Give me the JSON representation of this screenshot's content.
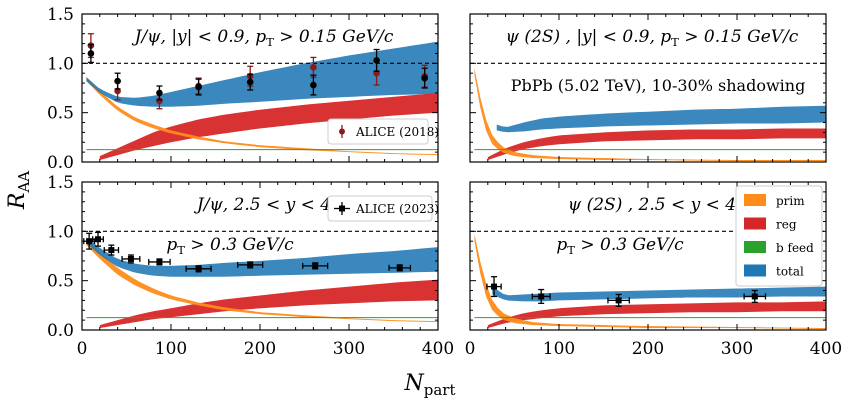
{
  "figure": {
    "ylabel": "R_AA",
    "ylabel_main": "R",
    "ylabel_sub": "AA",
    "xlabel": "N_part",
    "xlabel_main": "N",
    "xlabel_sub": "part"
  },
  "colors": {
    "prim": "#ff8c1a",
    "reg": "#d62728",
    "bfeed": "#2ca02c",
    "total": "#1f77b4",
    "data2018": "#8b1a1a",
    "data2023": "#000000"
  },
  "legend_total": {
    "prim": "prim",
    "reg": "reg",
    "bfeed": "b feed",
    "total": "total"
  },
  "chart_data": [
    {
      "id": "tl",
      "type": "area",
      "title_parts": [
        "J/ψ,  |y| < 0.9,  p",
        "T",
        " > 0.15 GeV/c"
      ],
      "xlim": [
        0,
        400
      ],
      "ylim": [
        0,
        1.5
      ],
      "xticks": [
        "0",
        "100",
        "200",
        "300",
        "400"
      ],
      "yticks": [
        "0.0",
        "0.5",
        "1.0",
        "1.5"
      ],
      "reference_line": 1.0,
      "bands": {
        "prim": {
          "x": [
            5,
            20,
            40,
            60,
            80,
            100,
            130,
            160,
            200,
            250,
            300,
            350,
            400
          ],
          "lo": [
            0.82,
            0.68,
            0.52,
            0.41,
            0.34,
            0.29,
            0.23,
            0.19,
            0.15,
            0.12,
            0.1,
            0.08,
            0.07
          ],
          "hi": [
            0.86,
            0.72,
            0.56,
            0.45,
            0.38,
            0.32,
            0.26,
            0.21,
            0.17,
            0.14,
            0.11,
            0.09,
            0.08
          ]
        },
        "reg": {
          "x": [
            20,
            40,
            60,
            80,
            100,
            130,
            160,
            200,
            250,
            300,
            350,
            400
          ],
          "lo": [
            0.02,
            0.07,
            0.12,
            0.16,
            0.2,
            0.25,
            0.29,
            0.34,
            0.39,
            0.43,
            0.47,
            0.5
          ],
          "hi": [
            0.06,
            0.14,
            0.22,
            0.3,
            0.36,
            0.43,
            0.48,
            0.53,
            0.58,
            0.62,
            0.66,
            0.7
          ]
        },
        "total": {
          "x": [
            5,
            20,
            40,
            60,
            80,
            100,
            130,
            160,
            200,
            250,
            300,
            350,
            400
          ],
          "lo": [
            0.82,
            0.7,
            0.6,
            0.57,
            0.56,
            0.56,
            0.57,
            0.59,
            0.61,
            0.64,
            0.66,
            0.68,
            0.69
          ],
          "hi": [
            0.86,
            0.74,
            0.66,
            0.65,
            0.67,
            0.71,
            0.77,
            0.83,
            0.91,
            1.0,
            1.08,
            1.15,
            1.22
          ]
        },
        "bfeed": {
          "x": [
            5,
            400
          ],
          "lo": [
            0.12,
            0.12
          ],
          "hi": [
            0.13,
            0.13
          ]
        }
      },
      "series": [
        {
          "name": "ALICE (2018)",
          "color": "#8b1a1a",
          "x": [
            10,
            40,
            87,
            131,
            189,
            260,
            331,
            385
          ],
          "y": [
            1.18,
            0.72,
            0.62,
            0.77,
            0.87,
            0.96,
            0.9,
            0.87
          ],
          "yerr": [
            0.12,
            0.09,
            0.08,
            0.08,
            0.1,
            0.1,
            0.12,
            0.11
          ]
        },
        {
          "name": "ALICE",
          "color": "#000000",
          "x": [
            10,
            40,
            87,
            131,
            189,
            260,
            331,
            385
          ],
          "y": [
            1.1,
            0.82,
            0.7,
            0.76,
            0.81,
            0.78,
            1.03,
            0.85
          ],
          "yerr": [
            0.09,
            0.08,
            0.07,
            0.08,
            0.08,
            0.1,
            0.11,
            0.1
          ]
        }
      ],
      "legend": [
        "ALICE (2018)"
      ]
    },
    {
      "id": "tr",
      "type": "area",
      "title_parts": [
        "ψ (2S) ,  |y| < 0.9,  p",
        "T",
        " > 0.15 GeV/c"
      ],
      "subtitle": "PbPb (5.02 TeV), 10-30% shadowing",
      "xlim": [
        0,
        400
      ],
      "ylim": [
        0,
        1.5
      ],
      "xticks": [
        "0",
        "100",
        "200",
        "300",
        "400"
      ],
      "yticks": [
        "0.0",
        "0.5",
        "1.0",
        "1.5"
      ],
      "reference_line": 1.0,
      "bands": {
        "prim": {
          "x": [
            5,
            15,
            25,
            35,
            50,
            70,
            100,
            150,
            200,
            300,
            400
          ],
          "lo": [
            0.88,
            0.38,
            0.18,
            0.1,
            0.06,
            0.04,
            0.03,
            0.02,
            0.02,
            0.01,
            0.01
          ],
          "hi": [
            0.95,
            0.5,
            0.27,
            0.16,
            0.1,
            0.07,
            0.05,
            0.04,
            0.03,
            0.02,
            0.02
          ]
        },
        "reg": {
          "x": [
            20,
            40,
            60,
            80,
            100,
            150,
            200,
            250,
            300,
            350,
            400
          ],
          "lo": [
            0.02,
            0.08,
            0.13,
            0.16,
            0.18,
            0.21,
            0.22,
            0.23,
            0.23,
            0.24,
            0.24
          ],
          "hi": [
            0.05,
            0.14,
            0.2,
            0.24,
            0.27,
            0.3,
            0.32,
            0.33,
            0.33,
            0.34,
            0.34
          ]
        },
        "total": {
          "x": [
            30,
            40,
            60,
            80,
            100,
            150,
            200,
            250,
            300,
            350,
            400
          ],
          "lo": [
            0.32,
            0.3,
            0.31,
            0.33,
            0.34,
            0.36,
            0.37,
            0.38,
            0.39,
            0.39,
            0.4
          ],
          "hi": [
            0.38,
            0.35,
            0.4,
            0.44,
            0.46,
            0.49,
            0.51,
            0.53,
            0.54,
            0.56,
            0.57
          ]
        },
        "bfeed": {
          "x": [
            5,
            400
          ],
          "lo": [
            0.12,
            0.12
          ],
          "hi": [
            0.13,
            0.13
          ]
        }
      },
      "series": []
    },
    {
      "id": "bl",
      "type": "area",
      "title_parts": [
        "J/ψ,  2.5 < y < 4"
      ],
      "subtitle_parts": [
        "p",
        "T",
        " > 0.3 GeV/c"
      ],
      "xlim": [
        0,
        400
      ],
      "ylim": [
        0,
        1.5
      ],
      "xticks": [
        "0",
        "100",
        "200",
        "300",
        "400"
      ],
      "yticks": [
        "0.0",
        "0.5",
        "1.0",
        "1.5"
      ],
      "reference_line": 1.0,
      "bands": {
        "prim": {
          "x": [
            5,
            20,
            40,
            60,
            80,
            100,
            130,
            160,
            200,
            250,
            300,
            350,
            400
          ],
          "lo": [
            0.86,
            0.72,
            0.56,
            0.45,
            0.37,
            0.31,
            0.25,
            0.2,
            0.16,
            0.13,
            0.11,
            0.09,
            0.08
          ],
          "hi": [
            0.92,
            0.79,
            0.63,
            0.51,
            0.42,
            0.35,
            0.28,
            0.23,
            0.18,
            0.15,
            0.12,
            0.1,
            0.09
          ]
        },
        "reg": {
          "x": [
            20,
            40,
            60,
            80,
            100,
            130,
            160,
            200,
            250,
            300,
            350,
            400
          ],
          "lo": [
            0.02,
            0.05,
            0.08,
            0.11,
            0.13,
            0.16,
            0.19,
            0.22,
            0.25,
            0.27,
            0.29,
            0.3
          ],
          "hi": [
            0.05,
            0.1,
            0.15,
            0.19,
            0.22,
            0.27,
            0.31,
            0.35,
            0.4,
            0.44,
            0.48,
            0.51
          ]
        },
        "total": {
          "x": [
            5,
            20,
            40,
            60,
            80,
            100,
            130,
            160,
            200,
            250,
            300,
            350,
            400
          ],
          "lo": [
            0.88,
            0.76,
            0.64,
            0.58,
            0.55,
            0.54,
            0.54,
            0.54,
            0.55,
            0.56,
            0.57,
            0.58,
            0.59
          ],
          "hi": [
            0.94,
            0.83,
            0.72,
            0.67,
            0.65,
            0.65,
            0.66,
            0.68,
            0.7,
            0.73,
            0.77,
            0.8,
            0.84
          ]
        },
        "bfeed": {
          "x": [
            5,
            400
          ],
          "lo": [
            0.12,
            0.12
          ],
          "hi": [
            0.13,
            0.13
          ]
        }
      },
      "series": [
        {
          "name": "ALICE (2023)",
          "color": "#000000",
          "x": [
            8,
            18,
            33,
            55,
            87,
            131,
            189,
            262,
            357
          ],
          "y": [
            0.9,
            0.92,
            0.81,
            0.72,
            0.69,
            0.62,
            0.66,
            0.65,
            0.63
          ],
          "yerr": [
            0.08,
            0.07,
            0.05,
            0.04,
            0.03,
            0.03,
            0.03,
            0.03,
            0.03
          ],
          "xerr": [
            6,
            6,
            8,
            10,
            12,
            14,
            14,
            14,
            12
          ]
        }
      ],
      "legend": [
        "ALICE (2023)"
      ]
    },
    {
      "id": "br",
      "type": "area",
      "title_parts": [
        "ψ (2S) ,  2.5 < y < 4"
      ],
      "subtitle_parts": [
        "p",
        "T",
        " > 0.3 GeV/c"
      ],
      "xlim": [
        0,
        400
      ],
      "ylim": [
        0,
        1.5
      ],
      "xticks": [
        "0",
        "100",
        "200",
        "300",
        "400"
      ],
      "yticks": [
        "0.0",
        "0.5",
        "1.0",
        "1.5"
      ],
      "reference_line": 1.0,
      "bands": {
        "prim": {
          "x": [
            5,
            15,
            25,
            35,
            50,
            70,
            100,
            150,
            200,
            300,
            400
          ],
          "lo": [
            0.9,
            0.4,
            0.2,
            0.11,
            0.07,
            0.05,
            0.04,
            0.03,
            0.02,
            0.02,
            0.01
          ],
          "hi": [
            0.97,
            0.55,
            0.3,
            0.18,
            0.12,
            0.08,
            0.06,
            0.05,
            0.04,
            0.03,
            0.02
          ]
        },
        "reg": {
          "x": [
            20,
            40,
            60,
            80,
            100,
            150,
            200,
            250,
            300,
            350,
            400
          ],
          "lo": [
            0.02,
            0.07,
            0.1,
            0.12,
            0.14,
            0.16,
            0.17,
            0.18,
            0.18,
            0.19,
            0.19
          ],
          "hi": [
            0.05,
            0.12,
            0.17,
            0.2,
            0.22,
            0.25,
            0.26,
            0.27,
            0.28,
            0.28,
            0.29
          ]
        },
        "total": {
          "x": [
            25,
            40,
            60,
            80,
            100,
            150,
            200,
            250,
            300,
            350,
            400
          ],
          "lo": [
            0.36,
            0.3,
            0.29,
            0.29,
            0.3,
            0.31,
            0.32,
            0.33,
            0.33,
            0.34,
            0.34
          ],
          "hi": [
            0.44,
            0.35,
            0.36,
            0.37,
            0.38,
            0.39,
            0.4,
            0.41,
            0.42,
            0.43,
            0.44
          ]
        },
        "bfeed": {
          "x": [
            5,
            400
          ],
          "lo": [
            0.12,
            0.12
          ],
          "hi": [
            0.13,
            0.13
          ]
        }
      },
      "series": [
        {
          "name": "ALICE",
          "color": "#000000",
          "x": [
            27,
            80,
            167,
            320
          ],
          "y": [
            0.44,
            0.34,
            0.3,
            0.34
          ],
          "yerr": [
            0.1,
            0.07,
            0.06,
            0.06
          ],
          "xerr": [
            8,
            10,
            12,
            12
          ]
        }
      ],
      "legend": [
        "prim",
        "reg",
        "b feed",
        "total"
      ]
    }
  ]
}
